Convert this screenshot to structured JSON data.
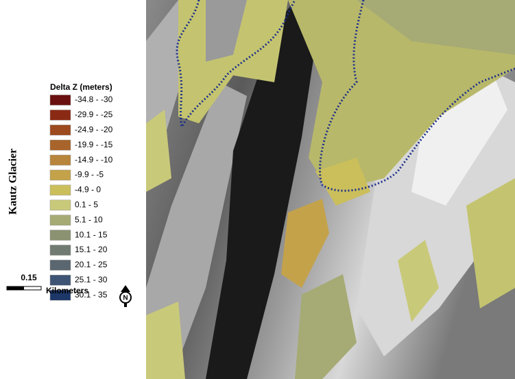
{
  "map": {
    "title": "Kautz Glacier",
    "legend": {
      "title": "Delta Z (meters)",
      "items": [
        {
          "label": "-34.8 - -30",
          "color": "#6b1010"
        },
        {
          "label": "-29.9 - -25",
          "color": "#8b2a14"
        },
        {
          "label": "-24.9 - -20",
          "color": "#9c4a1e"
        },
        {
          "label": "-19.9 - -15",
          "color": "#a8642a"
        },
        {
          "label": "-14.9 - -10",
          "color": "#b8853c"
        },
        {
          "label": "-9.9 - -5",
          "color": "#c4a24a"
        },
        {
          "label": "-4.9 - 0",
          "color": "#cbbf5c"
        },
        {
          "label": "0.1 - 5",
          "color": "#c9c97a"
        },
        {
          "label": "5.1 - 10",
          "color": "#a6aa74"
        },
        {
          "label": "10.1 - 15",
          "color": "#8a9272"
        },
        {
          "label": "15.1 - 20",
          "color": "#717b72"
        },
        {
          "label": "20.1 - 25",
          "color": "#5a6670"
        },
        {
          "label": "25.1 - 30",
          "color": "#3e5474"
        },
        {
          "label": "30.1 - 35",
          "color": "#1c3768"
        }
      ]
    },
    "scale_bar": {
      "distance": "0.15",
      "unit": "Kilometers"
    },
    "north_arrow": "N"
  }
}
